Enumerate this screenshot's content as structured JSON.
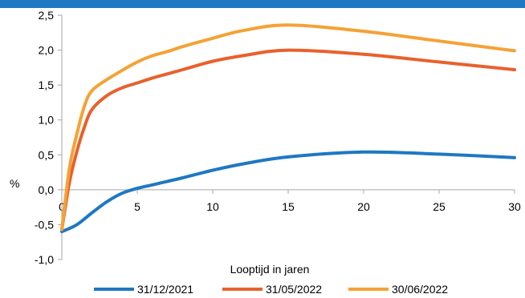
{
  "chart_data": {
    "type": "line",
    "xlabel": "Looptijd in jaren",
    "ylabel": "%",
    "xlim": [
      0,
      30
    ],
    "ylim": [
      -1.0,
      2.5
    ],
    "x_ticks": [
      "0",
      "5",
      "10",
      "15",
      "20",
      "25",
      "30"
    ],
    "y_ticks": [
      "2,5",
      "2,0",
      "1,5",
      "1,0",
      "0,5",
      "0,0",
      "-0,5",
      "-1,0"
    ],
    "grid": false,
    "legend_position": "bottom",
    "colors": {
      "header_band": "#1e78c2",
      "axis": "#a6a6a6"
    },
    "series": [
      {
        "name": "31/12/2021",
        "color": "#1e78c2",
        "x": [
          0,
          1,
          2,
          3,
          4,
          5,
          6,
          7,
          8,
          10,
          12,
          15,
          20,
          25,
          30
        ],
        "y": [
          -0.6,
          -0.5,
          -0.33,
          -0.17,
          -0.05,
          0.02,
          0.07,
          0.12,
          0.17,
          0.28,
          0.37,
          0.47,
          0.54,
          0.51,
          0.46
        ]
      },
      {
        "name": "31/05/2022",
        "color": "#e8612c",
        "x": [
          0,
          0.5,
          1,
          1.5,
          2,
          3,
          4,
          5,
          6,
          7,
          8,
          10,
          12,
          15,
          20,
          25,
          30
        ],
        "y": [
          -0.57,
          0.1,
          0.55,
          0.9,
          1.15,
          1.35,
          1.46,
          1.53,
          1.6,
          1.66,
          1.72,
          1.84,
          1.92,
          2.0,
          1.94,
          1.83,
          1.72
        ]
      },
      {
        "name": "30/06/2022",
        "color": "#f4a236",
        "x": [
          0,
          0.5,
          1,
          1.5,
          2,
          3,
          4,
          5,
          6,
          7,
          8,
          10,
          12,
          15,
          20,
          25,
          30
        ],
        "y": [
          -0.57,
          0.3,
          0.8,
          1.2,
          1.42,
          1.58,
          1.71,
          1.83,
          1.92,
          1.98,
          2.05,
          2.17,
          2.28,
          2.36,
          2.27,
          2.13,
          1.99
        ]
      }
    ]
  }
}
